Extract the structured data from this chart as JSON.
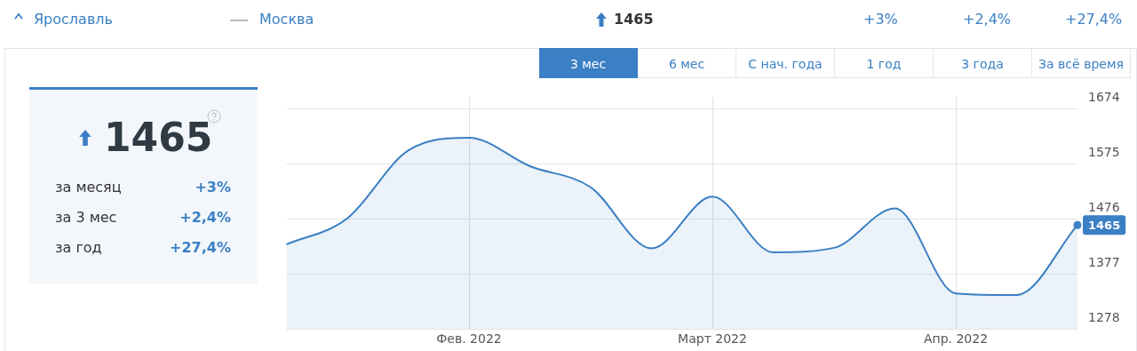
{
  "chart_data": {
    "type": "area",
    "categories": [
      null,
      null,
      null,
      "Фев. 2022",
      null,
      null,
      null,
      "Март 2022",
      null,
      null,
      null,
      "Апр. 2022",
      null,
      null
    ],
    "series": [
      {
        "color": "#3b7fc4",
        "values": [
          1430,
          1477,
          1599,
          1622,
          1571,
          1533,
          1423,
          1516,
          1416,
          1424,
          1495,
          1342,
          1339,
          1465
        ],
        "value_labels": [
          null,
          null,
          null,
          null,
          null,
          null,
          null,
          null,
          null,
          null,
          null,
          null,
          null,
          "1465"
        ]
      }
    ],
    "ylim": [
      1278,
      1695
    ],
    "yticks": [
      1278,
      1377,
      1476,
      1575,
      1674
    ],
    "grid": true,
    "legend": false,
    "annotations": [
      "Ярославль",
      "Москва",
      "1465",
      "+3%",
      "+2,4%",
      "+27,4%",
      "3 мес",
      "6 мес",
      "С нач. года",
      "1 год",
      "3 года",
      "За всё время",
      "1465",
      "за месяц",
      "+3%",
      "за 3 мес",
      "+2,4%",
      "за год",
      "+27,4%"
    ]
  }
}
